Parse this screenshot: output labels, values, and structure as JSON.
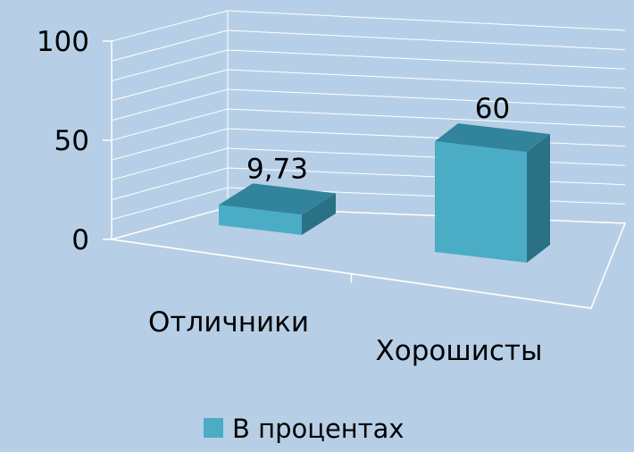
{
  "chart_data": {
    "type": "bar",
    "title": "",
    "xlabel": "",
    "ylabel": "",
    "categories": [
      "Отличники",
      "Хорошисты"
    ],
    "series": [
      {
        "name": "В процентах",
        "values": [
          9.73,
          60
        ],
        "data_labels": [
          "9,73",
          "60"
        ],
        "color": "#4bacc6"
      }
    ],
    "y_ticks": [
      "0",
      "50",
      "100"
    ],
    "ylim": [
      0,
      100
    ],
    "grid": true,
    "legend_position": "bottom",
    "style": "3d-column"
  },
  "colors": {
    "background": "#b7cfe6",
    "bar_front": "#4bacc6",
    "bar_top": "#31849b",
    "bar_side": "#2a7186",
    "axis": "#ffffff",
    "gridline": "#ffffff"
  }
}
